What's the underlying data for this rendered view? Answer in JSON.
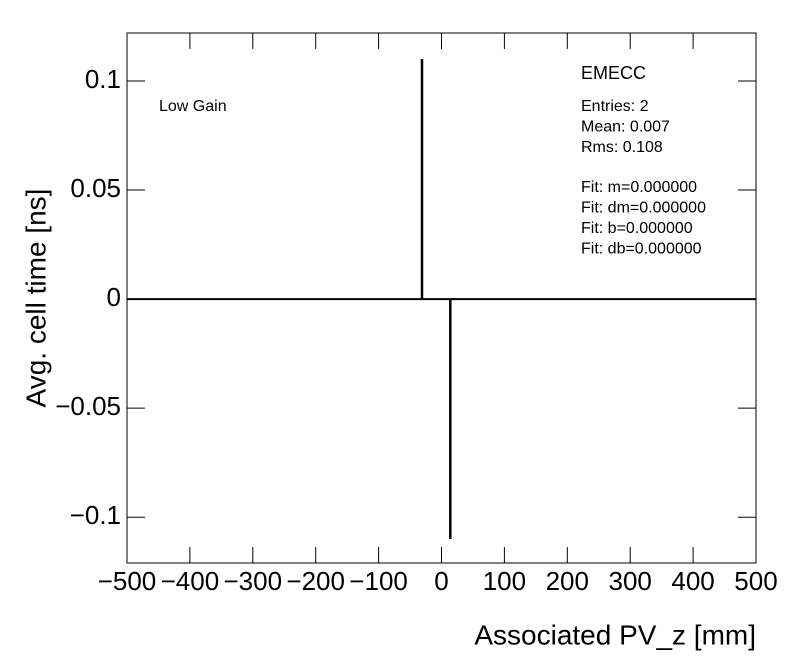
{
  "chart_data": {
    "type": "bar",
    "x_label": "Associated PV_z [mm]",
    "y_label": "Avg. cell time [ns]",
    "annotations": [
      "EMECC",
      "Low Gain"
    ],
    "stats": [
      "Entries: 2",
      "Mean: 0.007",
      "Rms: 0.108"
    ],
    "fit": [
      "Fit: m=0.000000",
      "Fit: dm=0.000000",
      "Fit: b=0.000000",
      "Fit: db=0.000000"
    ],
    "x": [
      -31,
      14
    ],
    "values": [
      0.11,
      -0.11
    ],
    "color": "#000000",
    "xlim": [
      -500,
      500
    ],
    "xticks": [
      {
        "value": -500,
        "label": "−500"
      },
      {
        "value": -400,
        "label": "−400"
      },
      {
        "value": -300,
        "label": "−300"
      },
      {
        "value": -200,
        "label": "−200"
      },
      {
        "value": -100,
        "label": "−100"
      },
      0,
      100,
      200,
      300,
      400,
      500
    ],
    "ylim": [
      -0.121,
      0.122
    ],
    "yticks": [
      {
        "value": -0.1,
        "label": "−0.1"
      },
      {
        "value": -0.05,
        "label": "−0.05"
      },
      0,
      0.05,
      0.1
    ]
  }
}
